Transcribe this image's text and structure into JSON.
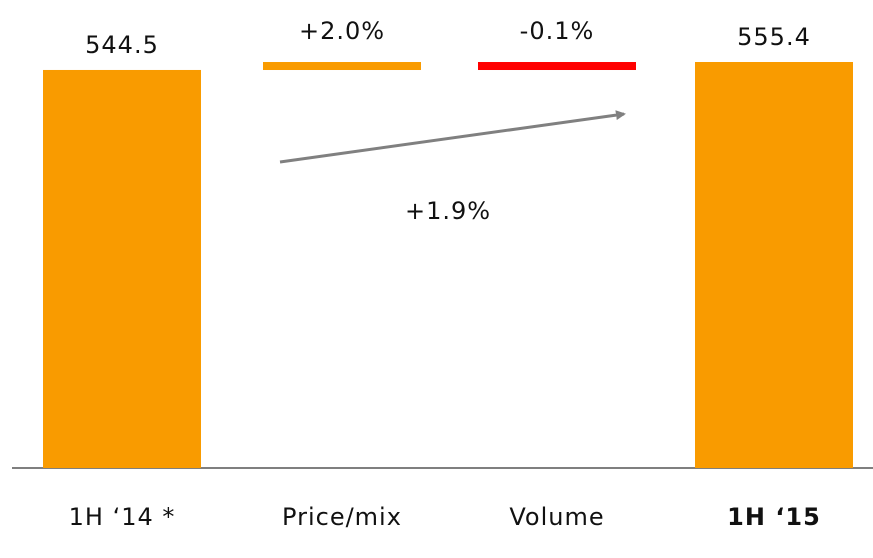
{
  "chart_data": {
    "type": "waterfall",
    "categories": [
      "1H ‘14 *",
      "Price/mix",
      "Volume",
      "1H ‘15"
    ],
    "measures": [
      "absolute",
      "relative",
      "relative",
      "total"
    ],
    "values": [
      544.5,
      2.0,
      -0.1,
      555.4
    ],
    "value_labels": [
      "544.5",
      "+2.0%",
      "-0.1%",
      "555.4"
    ],
    "colors": [
      "#f99b00",
      "#f99b00",
      "#ff0000",
      "#f99b00"
    ],
    "annotation": "+1.9%"
  }
}
